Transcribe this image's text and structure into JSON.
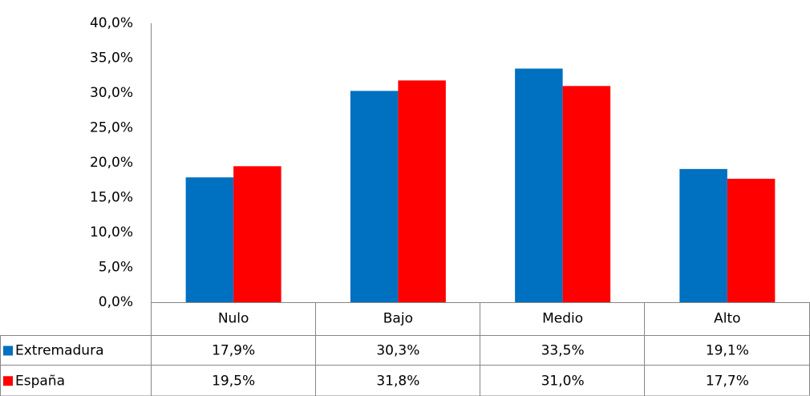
{
  "chart_data": {
    "type": "bar",
    "categories": [
      "Nulo",
      "Bajo",
      "Medio",
      "Alto"
    ],
    "series": [
      {
        "name": "Extremadura",
        "color": "#0070c0",
        "values": [
          17.9,
          30.3,
          33.5,
          19.1
        ],
        "value_labels": [
          "17,9%",
          "30,3%",
          "33,5%",
          "19,1%"
        ]
      },
      {
        "name": "España",
        "color": "#ff0000",
        "values": [
          19.5,
          31.8,
          31.0,
          17.7
        ],
        "value_labels": [
          "19,5%",
          "31,8%",
          "31,0%",
          "17,7%"
        ]
      }
    ],
    "ylim": [
      0,
      40
    ],
    "yticks": [
      {
        "value": 0,
        "label": "0,0%"
      },
      {
        "value": 5,
        "label": "5,0%"
      },
      {
        "value": 10,
        "label": "10,0%"
      },
      {
        "value": 15,
        "label": "15,0%"
      },
      {
        "value": 20,
        "label": "20,0%"
      },
      {
        "value": 25,
        "label": "25,0%"
      },
      {
        "value": 30,
        "label": "30,0%"
      },
      {
        "value": 35,
        "label": "35,0%"
      },
      {
        "value": 40,
        "label": "40,0%"
      }
    ],
    "grid": false
  }
}
